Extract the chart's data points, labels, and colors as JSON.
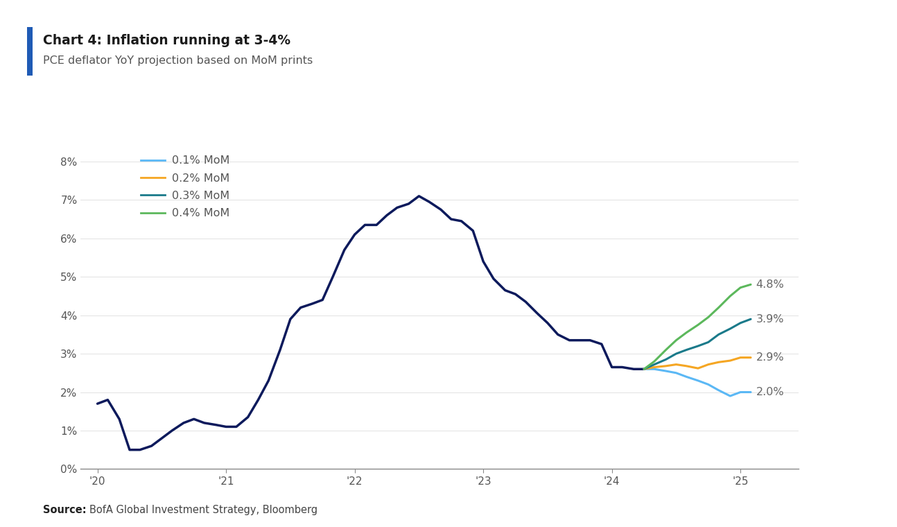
{
  "title": "Chart 4: Inflation running at 3-4%",
  "subtitle": "PCE deflator YoY projection based on MoM prints",
  "source": "Source: BofA Global Investment Strategy, Bloomberg",
  "background_color": "#ffffff",
  "left_bar_color": "#1f5bb5",
  "legend_labels": [
    "0.1% MoM",
    "0.2% MoM",
    "0.3% MoM",
    "0.4% MoM"
  ],
  "line_colors": [
    "#5bb8f5",
    "#f5a623",
    "#1a7a8a",
    "#5cb85c"
  ],
  "main_line_color": "#0d1a5c",
  "end_labels": [
    "2.0%",
    "2.9%",
    "3.9%",
    "4.8%"
  ],
  "ylim": [
    0.0,
    8.5
  ],
  "yticks": [
    0,
    1,
    2,
    3,
    4,
    5,
    6,
    7,
    8
  ],
  "ytick_labels": [
    "0%",
    "1%",
    "2%",
    "3%",
    "4%",
    "5%",
    "6%",
    "7%",
    "8%"
  ],
  "xlim": [
    2019.87,
    2025.45
  ],
  "xtick_positions": [
    2020.0,
    2021.0,
    2022.0,
    2023.0,
    2024.0,
    2025.0
  ],
  "xtick_labels": [
    "'20",
    "'21",
    "'22",
    "'23",
    "'24",
    "'25"
  ],
  "main_dates": [
    2020.0,
    2020.08,
    2020.17,
    2020.25,
    2020.33,
    2020.42,
    2020.5,
    2020.58,
    2020.67,
    2020.75,
    2020.83,
    2020.92,
    2021.0,
    2021.08,
    2021.17,
    2021.25,
    2021.33,
    2021.42,
    2021.5,
    2021.58,
    2021.67,
    2021.75,
    2021.83,
    2021.92,
    2022.0,
    2022.08,
    2022.17,
    2022.25,
    2022.33,
    2022.42,
    2022.5,
    2022.58,
    2022.67,
    2022.75,
    2022.83,
    2022.92,
    2023.0,
    2023.08,
    2023.17,
    2023.25,
    2023.33,
    2023.42,
    2023.5,
    2023.58,
    2023.67,
    2023.75,
    2023.83,
    2023.92,
    2024.0,
    2024.08,
    2024.17,
    2024.25
  ],
  "main_values": [
    1.7,
    1.8,
    1.3,
    0.5,
    0.5,
    0.6,
    0.8,
    1.0,
    1.2,
    1.3,
    1.2,
    1.15,
    1.1,
    1.1,
    1.35,
    1.8,
    2.3,
    3.1,
    3.9,
    4.2,
    4.3,
    4.4,
    5.0,
    5.7,
    6.1,
    6.35,
    6.35,
    6.6,
    6.8,
    6.9,
    7.1,
    6.95,
    6.75,
    6.5,
    6.45,
    6.2,
    5.4,
    4.95,
    4.65,
    4.55,
    4.35,
    4.05,
    3.8,
    3.5,
    3.35,
    3.35,
    3.35,
    3.25,
    2.65,
    2.65,
    2.6,
    2.6
  ],
  "proj_dates": [
    2024.25,
    2024.33,
    2024.42,
    2024.5,
    2024.58,
    2024.67,
    2024.75,
    2024.83,
    2024.92,
    2025.0,
    2025.08
  ],
  "proj_01": [
    2.6,
    2.6,
    2.55,
    2.5,
    2.4,
    2.3,
    2.2,
    2.05,
    1.9,
    2.0,
    2.0
  ],
  "proj_02": [
    2.6,
    2.65,
    2.68,
    2.72,
    2.68,
    2.62,
    2.72,
    2.78,
    2.82,
    2.9,
    2.9
  ],
  "proj_03": [
    2.6,
    2.72,
    2.85,
    3.0,
    3.1,
    3.2,
    3.3,
    3.5,
    3.65,
    3.8,
    3.9
  ],
  "proj_04": [
    2.6,
    2.8,
    3.1,
    3.35,
    3.55,
    3.75,
    3.95,
    4.2,
    4.5,
    4.72,
    4.8
  ]
}
